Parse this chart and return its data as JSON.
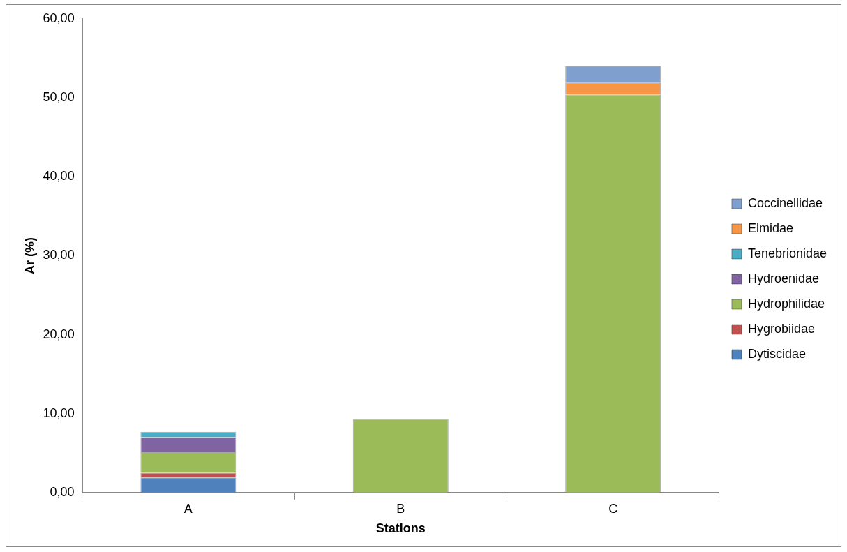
{
  "chart_data": {
    "type": "bar",
    "stacked": true,
    "xlabel": "Stations",
    "ylabel": "Ar (%)",
    "categories": [
      "A",
      "B",
      "C"
    ],
    "series": [
      {
        "name": "Dytiscidae",
        "color": "#4f81bd",
        "values": [
          1.9,
          0,
          0
        ]
      },
      {
        "name": "Hygrobiidae",
        "color": "#c0504d",
        "values": [
          0.6,
          0,
          0
        ]
      },
      {
        "name": "Hydrophilidae",
        "color": "#9bbb59",
        "values": [
          2.6,
          9.3,
          50.4
        ]
      },
      {
        "name": "Hydroenidae",
        "color": "#8064a2",
        "values": [
          1.9,
          0,
          0
        ]
      },
      {
        "name": "Tenebrionidae",
        "color": "#4bacc6",
        "values": [
          0.7,
          0,
          0
        ]
      },
      {
        "name": "Elmidae",
        "color": "#f79646",
        "values": [
          0,
          0,
          1.5
        ]
      },
      {
        "name": "Coccinellidae",
        "color": "#7f9fcf",
        "values": [
          0,
          0,
          2.1
        ]
      }
    ],
    "ylim": [
      0,
      60
    ],
    "yticks": [
      {
        "value": 0,
        "label": "0,00"
      },
      {
        "value": 10,
        "label": "10,00"
      },
      {
        "value": 20,
        "label": "20,00"
      },
      {
        "value": 30,
        "label": "30,00"
      },
      {
        "value": 40,
        "label": "40,00"
      },
      {
        "value": 50,
        "label": "50,00"
      },
      {
        "value": 60,
        "label": "60,00"
      }
    ],
    "grid": false,
    "legend": "right"
  }
}
